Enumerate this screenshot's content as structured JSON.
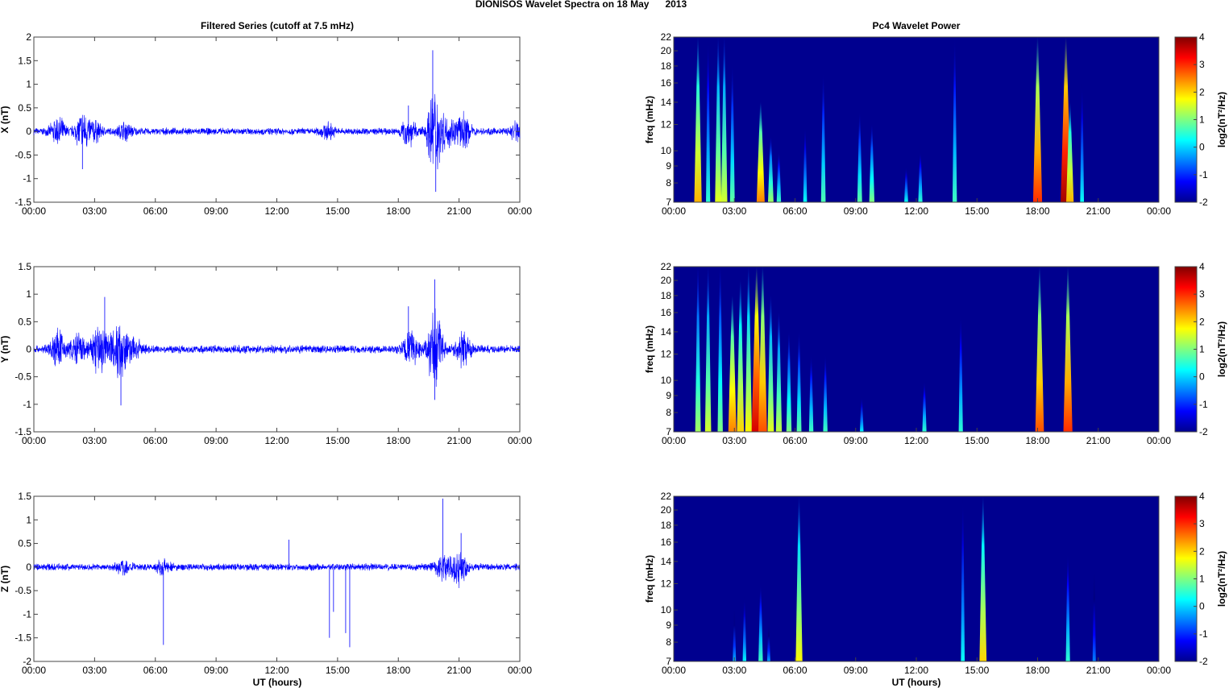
{
  "chart_data": {
    "title": "DIONISOS Wavelet Spectra on 18 May      2013",
    "left_title": "Filtered Series (cutoff at 7.5 mHz)",
    "right_title": "Pc4 Wavelet Power",
    "xlabel": "UT (hours)",
    "xticks": [
      "00:00",
      "03:00",
      "06:00",
      "09:00",
      "12:00",
      "15:00",
      "18:00",
      "21:00",
      "00:00"
    ],
    "xlim": [
      0,
      24
    ],
    "series": [
      {
        "name": "X",
        "type": "line",
        "ylabel": "X (nT)",
        "ylim": [
          -1.5,
          2
        ],
        "yticks": [
          "-1.5",
          "-1",
          "-0.5",
          "0",
          "0.5",
          "1",
          "1.5",
          "2"
        ],
        "yvals": [
          -1.5,
          -1,
          -0.5,
          0,
          0.5,
          1,
          1.5,
          2
        ],
        "bursts": [
          [
            1.2,
            0.5
          ],
          [
            2.4,
            0.7
          ],
          [
            3,
            0.35
          ],
          [
            4.5,
            0.3
          ],
          [
            14.5,
            0.25
          ],
          [
            18.5,
            0.5
          ],
          [
            19.8,
            1.7
          ],
          [
            20.5,
            0.45
          ],
          [
            21.2,
            0.6
          ],
          [
            23.9,
            0.4
          ]
        ],
        "spikes": [
          [
            2.4,
            -0.8
          ],
          [
            19.7,
            1.72
          ],
          [
            19.85,
            -1.28
          ],
          [
            18.5,
            0.55
          ]
        ]
      },
      {
        "name": "Y",
        "type": "line",
        "ylabel": "Y (nT)",
        "ylim": [
          -1.5,
          1.5
        ],
        "yticks": [
          "-1.5",
          "-1",
          "-0.5",
          "0",
          "0.5",
          "1",
          "1.5"
        ],
        "yvals": [
          -1.5,
          -1,
          -0.5,
          0,
          0.5,
          1,
          1.5
        ],
        "bursts": [
          [
            1.2,
            0.6
          ],
          [
            2.2,
            0.5
          ],
          [
            3.2,
            0.8
          ],
          [
            3.7,
            0.5
          ],
          [
            4.3,
            0.85
          ],
          [
            5,
            0.3
          ],
          [
            18.6,
            0.6
          ],
          [
            19.8,
            1.2
          ],
          [
            21.2,
            0.5
          ]
        ],
        "spikes": [
          [
            3.5,
            0.95
          ],
          [
            4.3,
            -1.02
          ],
          [
            19.8,
            1.27
          ],
          [
            19.8,
            -0.92
          ],
          [
            18.5,
            0.78
          ]
        ]
      },
      {
        "name": "Z",
        "type": "line",
        "ylabel": "Z (nT)",
        "ylim": [
          -2,
          1.5
        ],
        "yticks": [
          "-2",
          "-1.5",
          "-1",
          "-0.5",
          "0",
          "0.5",
          "1",
          "1.5"
        ],
        "yvals": [
          -2,
          -1.5,
          -1,
          -0.5,
          0,
          0.5,
          1,
          1.5
        ],
        "bursts": [
          [
            4.4,
            0.25
          ],
          [
            6.4,
            0.3
          ],
          [
            20.2,
            0.55
          ],
          [
            21,
            0.65
          ]
        ],
        "spikes": [
          [
            6.4,
            -1.65
          ],
          [
            12.6,
            0.58
          ],
          [
            14.6,
            -1.5
          ],
          [
            14.8,
            -0.95
          ],
          [
            15.4,
            -1.4
          ],
          [
            15.6,
            -1.7
          ],
          [
            20.2,
            1.45
          ],
          [
            21.1,
            0.72
          ]
        ]
      }
    ],
    "spectra": [
      {
        "name": "X",
        "type": "heatmap",
        "ylabel": "freq (mHz)",
        "yticks": [
          "7",
          "8",
          "9",
          "10",
          "12",
          "14",
          "16",
          "18",
          "20",
          "22"
        ],
        "yvals": [
          7,
          8,
          9,
          10,
          12,
          14,
          16,
          18,
          20,
          22
        ],
        "clabel": "log2(nT²/Hz)",
        "clim": [
          -2,
          4
        ],
        "cticks": [
          "-2",
          "-1",
          "0",
          "1",
          "2",
          "3",
          "4"
        ],
        "streaks": [
          [
            1.2,
            2.2,
            22
          ],
          [
            1.7,
            0.5,
            22
          ],
          [
            2.2,
            1.6,
            22
          ],
          [
            2.5,
            1.5,
            22
          ],
          [
            2.9,
            0.8,
            18
          ],
          [
            4.3,
            2.5,
            14
          ],
          [
            4.8,
            1.2,
            11
          ],
          [
            5.2,
            0.6,
            10
          ],
          [
            6.5,
            0.3,
            12
          ],
          [
            7.4,
            0.7,
            17
          ],
          [
            9.2,
            0.8,
            13
          ],
          [
            9.8,
            1,
            12
          ],
          [
            11.5,
            0.3,
            9
          ],
          [
            12.2,
            0.5,
            10
          ],
          [
            13.9,
            0.6,
            22
          ],
          [
            18,
            3,
            22
          ],
          [
            19.4,
            3.8,
            22
          ],
          [
            19.6,
            2.2,
            14
          ],
          [
            20.2,
            0.3,
            16
          ]
        ]
      },
      {
        "name": "Y",
        "type": "heatmap",
        "ylabel": "freq (mHz)",
        "yticks": [
          "7",
          "8",
          "9",
          "10",
          "12",
          "14",
          "16",
          "18",
          "20",
          "22"
        ],
        "yvals": [
          7,
          8,
          9,
          10,
          12,
          14,
          16,
          18,
          20,
          22
        ],
        "clabel": "log2(nT²/Hz)",
        "clim": [
          -2,
          4
        ],
        "cticks": [
          "-2",
          "-1",
          "0",
          "1",
          "2",
          "3",
          "4"
        ],
        "streaks": [
          [
            1.2,
            1.2,
            22
          ],
          [
            1.7,
            1.5,
            22
          ],
          [
            2.3,
            1,
            22
          ],
          [
            2.9,
            2.5,
            18
          ],
          [
            3.3,
            2,
            20
          ],
          [
            3.7,
            1.8,
            22
          ],
          [
            4.1,
            3.5,
            22
          ],
          [
            4.4,
            2.8,
            22
          ],
          [
            4.8,
            1.6,
            18
          ],
          [
            5.2,
            1.4,
            16
          ],
          [
            5.7,
            1,
            14
          ],
          [
            6.2,
            0.8,
            14
          ],
          [
            6.8,
            0.6,
            12
          ],
          [
            7.5,
            0.6,
            12
          ],
          [
            9.3,
            0.2,
            9
          ],
          [
            12.4,
            0.5,
            10
          ],
          [
            14.2,
            0.5,
            16
          ],
          [
            18.1,
            2.8,
            22
          ],
          [
            19.5,
            3,
            22
          ]
        ]
      },
      {
        "name": "Z",
        "type": "heatmap",
        "ylabel": "freq (mHz)",
        "yticks": [
          "7",
          "8",
          "9",
          "10",
          "12",
          "14",
          "16",
          "18",
          "20",
          "22"
        ],
        "yvals": [
          7,
          8,
          9,
          10,
          12,
          14,
          16,
          18,
          20,
          22
        ],
        "clabel": "log2(nT²/Hz)",
        "clim": [
          -2,
          4
        ],
        "cticks": [
          "-2",
          "-1",
          "0",
          "1",
          "2",
          "3",
          "4"
        ],
        "streaks": [
          [
            3,
            -0.2,
            10
          ],
          [
            3.5,
            0.2,
            11
          ],
          [
            4.3,
            0.6,
            12
          ],
          [
            4.7,
            -0.3,
            9
          ],
          [
            6.2,
            1.8,
            22
          ],
          [
            14.3,
            0.3,
            22
          ],
          [
            15.3,
            2,
            22
          ],
          [
            19.5,
            0.5,
            15
          ],
          [
            20.8,
            -0.5,
            13
          ]
        ]
      }
    ]
  }
}
